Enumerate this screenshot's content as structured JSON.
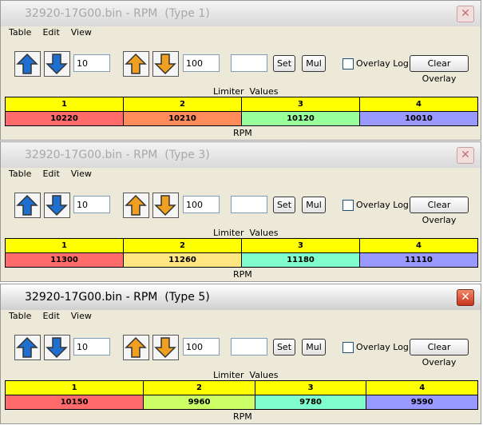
{
  "windows": [
    {
      "title": "32920-17G00.bin - RPM  (Type 1)",
      "active": false,
      "menu": [
        "Table",
        "Edit",
        "View"
      ],
      "step_small": "10",
      "step_large": "100",
      "set_button": "Set",
      "mul_button": "Mul",
      "overlay_log": "Overlay Log",
      "clear_overlay": "Clear Overlay",
      "table": {
        "caption": "Limiter  Values",
        "columns": [
          1,
          2,
          3,
          4
        ],
        "values": [
          10220,
          10210,
          10120,
          10010
        ],
        "header_color": "#ffff00",
        "colors": [
          "#ff6b6b",
          "#ff8a5c",
          "#99ff99",
          "#9999ff"
        ]
      },
      "axis_label": "RPM"
    },
    {
      "title": "32920-17G00.bin - RPM  (Type 3)",
      "active": false,
      "menu": [
        "Table",
        "Edit",
        "View"
      ],
      "step_small": "10",
      "step_large": "100",
      "set_button": "Set",
      "mul_button": "Mul",
      "overlay_log": "Overlay Log",
      "clear_overlay": "Clear Overlay",
      "table": {
        "caption": "Limiter  Values",
        "columns": [
          1,
          2,
          3,
          4
        ],
        "values": [
          11300,
          11260,
          11180,
          11110
        ],
        "header_color": "#ffff00",
        "colors": [
          "#ff6b6b",
          "#ffe680",
          "#80ffcc",
          "#9999ff"
        ]
      },
      "axis_label": "RPM"
    },
    {
      "title": "32920-17G00.bin - RPM  (Type 5)",
      "active": true,
      "menu": [
        "Table",
        "Edit",
        "View"
      ],
      "step_small": "10",
      "step_large": "100",
      "set_button": "Set",
      "mul_button": "Mul",
      "overlay_log": "Overlay Log",
      "clear_overlay": "Clear Overlay",
      "table": {
        "caption": "Limiter  Values",
        "columns": [
          1,
          2,
          3,
          4
        ],
        "values": [
          10150,
          9960,
          9780,
          9590
        ],
        "header_color": "#ffff00",
        "colors": [
          "#ff6b6b",
          "#ccff66",
          "#80ffcc",
          "#9999ff"
        ]
      },
      "axis_label": "RPM"
    }
  ]
}
